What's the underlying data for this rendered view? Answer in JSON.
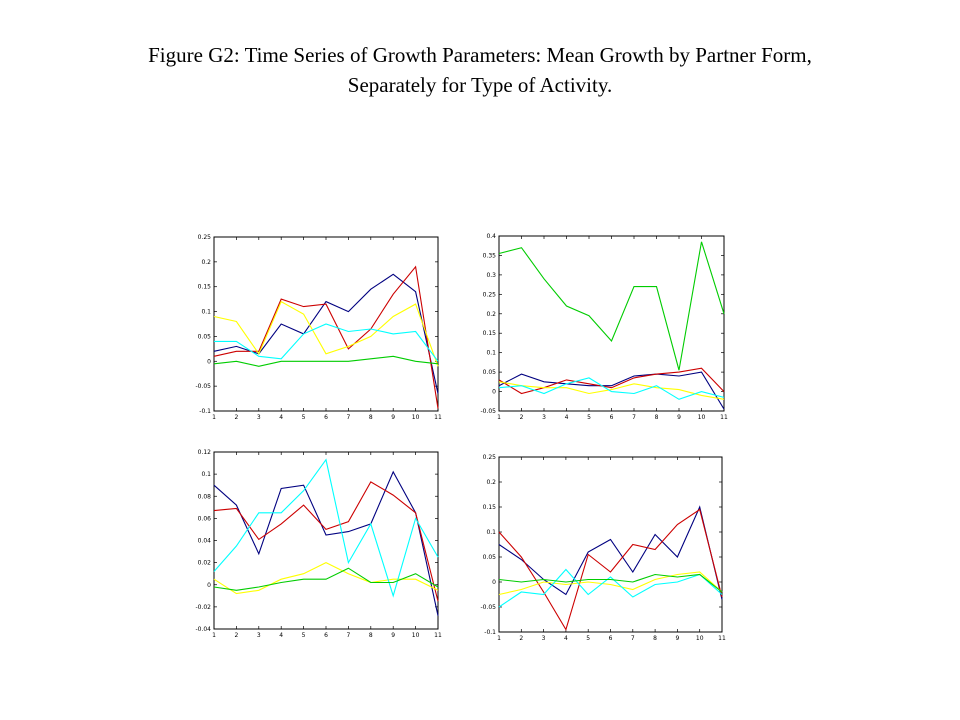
{
  "title": {
    "line1": "Figure G2: Time Series of Growth Parameters: Mean Growth by Partner Form,",
    "line2": "Separately for Type of Activity."
  },
  "series_colors": {
    "navy": "#000080",
    "red": "#cc0000",
    "yellow": "#ffff00",
    "cyan": "#00ffff",
    "green": "#00cc00"
  },
  "chart_data": [
    {
      "type": "line",
      "x": [
        1,
        2,
        3,
        4,
        5,
        6,
        7,
        8,
        9,
        10,
        11
      ],
      "xticks": [
        "1",
        "2",
        "3",
        "4",
        "5",
        "6",
        "7",
        "8",
        "9",
        "10",
        "11"
      ],
      "ylim": [
        -0.1,
        0.25
      ],
      "yticks": [
        -0.1,
        -0.05,
        0,
        0.05,
        0.1,
        0.15,
        0.2,
        0.25
      ],
      "ytick_labels": [
        "-0.1",
        "-0.05",
        "0",
        "0.05",
        "0.1",
        "0.15",
        "0.2",
        "0.25"
      ],
      "series": [
        {
          "color": "navy",
          "values": [
            0.02,
            0.03,
            0.015,
            0.075,
            0.055,
            0.12,
            0.1,
            0.145,
            0.175,
            0.14,
            -0.065
          ]
        },
        {
          "color": "red",
          "values": [
            0.01,
            0.02,
            0.02,
            0.125,
            0.11,
            0.115,
            0.025,
            0.065,
            0.135,
            0.19,
            -0.095
          ]
        },
        {
          "color": "yellow",
          "values": [
            0.09,
            0.08,
            0.015,
            0.12,
            0.095,
            0.015,
            0.03,
            0.05,
            0.09,
            0.115,
            -0.01
          ]
        },
        {
          "color": "cyan",
          "values": [
            0.04,
            0.04,
            0.01,
            0.005,
            0.055,
            0.075,
            0.06,
            0.065,
            0.055,
            0.06,
            0.0
          ]
        },
        {
          "color": "green",
          "values": [
            -0.005,
            0.0,
            -0.01,
            0.0,
            0.0,
            0.0,
            0.0,
            0.005,
            0.01,
            0.0,
            -0.005
          ]
        }
      ]
    },
    {
      "type": "line",
      "x": [
        1,
        2,
        3,
        4,
        5,
        6,
        7,
        8,
        9,
        10,
        11
      ],
      "xticks": [
        "1",
        "2",
        "3",
        "4",
        "5",
        "6",
        "7",
        "8",
        "9",
        "10",
        "11"
      ],
      "ylim": [
        -0.05,
        0.4
      ],
      "yticks": [
        -0.05,
        0,
        0.05,
        0.1,
        0.15,
        0.2,
        0.25,
        0.3,
        0.35,
        0.4
      ],
      "ytick_labels": [
        "-0.05",
        "0",
        "0.05",
        "0.1",
        "0.15",
        "0.2",
        "0.25",
        "0.3",
        "0.35",
        "0.4"
      ],
      "series": [
        {
          "color": "navy",
          "values": [
            0.015,
            0.045,
            0.025,
            0.02,
            0.015,
            0.015,
            0.04,
            0.045,
            0.04,
            0.05,
            -0.045
          ]
        },
        {
          "color": "red",
          "values": [
            0.03,
            -0.005,
            0.01,
            0.03,
            0.02,
            0.01,
            0.035,
            0.045,
            0.05,
            0.06,
            0.0
          ]
        },
        {
          "color": "yellow",
          "values": [
            0.025,
            0.015,
            0.01,
            0.01,
            -0.005,
            0.005,
            0.02,
            0.01,
            0.005,
            -0.01,
            -0.02
          ]
        },
        {
          "color": "cyan",
          "values": [
            0.01,
            0.015,
            -0.005,
            0.02,
            0.035,
            0.0,
            -0.005,
            0.015,
            -0.02,
            0.0,
            -0.015
          ]
        },
        {
          "color": "green",
          "values": [
            0.355,
            0.37,
            0.29,
            0.22,
            0.195,
            0.13,
            0.27,
            0.27,
            0.055,
            0.385,
            0.2
          ]
        }
      ]
    },
    {
      "type": "line",
      "x": [
        1,
        2,
        3,
        4,
        5,
        6,
        7,
        8,
        9,
        10,
        11
      ],
      "xticks": [
        "1",
        "2",
        "3",
        "4",
        "5",
        "6",
        "7",
        "8",
        "9",
        "10",
        "11"
      ],
      "ylim": [
        -0.04,
        0.12
      ],
      "yticks": [
        -0.04,
        -0.02,
        0,
        0.02,
        0.04,
        0.06,
        0.08,
        0.1,
        0.12
      ],
      "ytick_labels": [
        "-0.04",
        "-0.02",
        "0",
        "0.02",
        "0.04",
        "0.06",
        "0.08",
        "0.1",
        "0.12"
      ],
      "series": [
        {
          "color": "navy",
          "values": [
            0.09,
            0.072,
            0.028,
            0.087,
            0.09,
            0.045,
            0.048,
            0.055,
            0.102,
            0.065,
            -0.028
          ]
        },
        {
          "color": "red",
          "values": [
            0.067,
            0.069,
            0.041,
            0.055,
            0.072,
            0.05,
            0.057,
            0.093,
            0.081,
            0.065,
            -0.015
          ]
        },
        {
          "color": "yellow",
          "values": [
            0.005,
            -0.008,
            -0.005,
            0.005,
            0.01,
            0.02,
            0.01,
            0.002,
            0.005,
            0.005,
            -0.005
          ]
        },
        {
          "color": "cyan",
          "values": [
            0.012,
            0.035,
            0.065,
            0.065,
            0.085,
            0.113,
            0.02,
            0.055,
            -0.01,
            0.06,
            0.025
          ]
        },
        {
          "color": "green",
          "values": [
            -0.002,
            -0.005,
            -0.002,
            0.002,
            0.005,
            0.005,
            0.015,
            0.002,
            0.002,
            0.01,
            -0.002
          ]
        }
      ]
    },
    {
      "type": "line",
      "x": [
        1,
        2,
        3,
        4,
        5,
        6,
        7,
        8,
        9,
        10,
        11
      ],
      "xticks": [
        "1",
        "2",
        "3",
        "4",
        "5",
        "6",
        "7",
        "8",
        "9",
        "10",
        "11"
      ],
      "ylim": [
        -0.1,
        0.25
      ],
      "yticks": [
        -0.1,
        -0.05,
        0,
        0.05,
        0.1,
        0.15,
        0.2,
        0.25
      ],
      "ytick_labels": [
        "-0.1",
        "-0.05",
        "0",
        "0.05",
        "0.1",
        "0.15",
        "0.2",
        "0.25"
      ],
      "series": [
        {
          "color": "navy",
          "values": [
            0.075,
            0.045,
            0.005,
            -0.025,
            0.06,
            0.085,
            0.02,
            0.095,
            0.05,
            0.15,
            -0.035
          ]
        },
        {
          "color": "red",
          "values": [
            0.1,
            0.05,
            -0.02,
            -0.095,
            0.055,
            0.02,
            0.075,
            0.065,
            0.115,
            0.145,
            -0.03
          ]
        },
        {
          "color": "yellow",
          "values": [
            -0.025,
            -0.015,
            0.0,
            -0.005,
            0.0,
            -0.005,
            -0.015,
            0.005,
            0.015,
            0.02,
            -0.02
          ]
        },
        {
          "color": "cyan",
          "values": [
            -0.05,
            -0.02,
            -0.025,
            0.025,
            -0.025,
            0.01,
            -0.03,
            -0.005,
            0.0,
            0.015,
            -0.025
          ]
        },
        {
          "color": "green",
          "values": [
            0.005,
            0.0,
            0.005,
            0.0,
            0.005,
            0.005,
            0.0,
            0.015,
            0.01,
            0.015,
            -0.02
          ]
        }
      ]
    }
  ]
}
